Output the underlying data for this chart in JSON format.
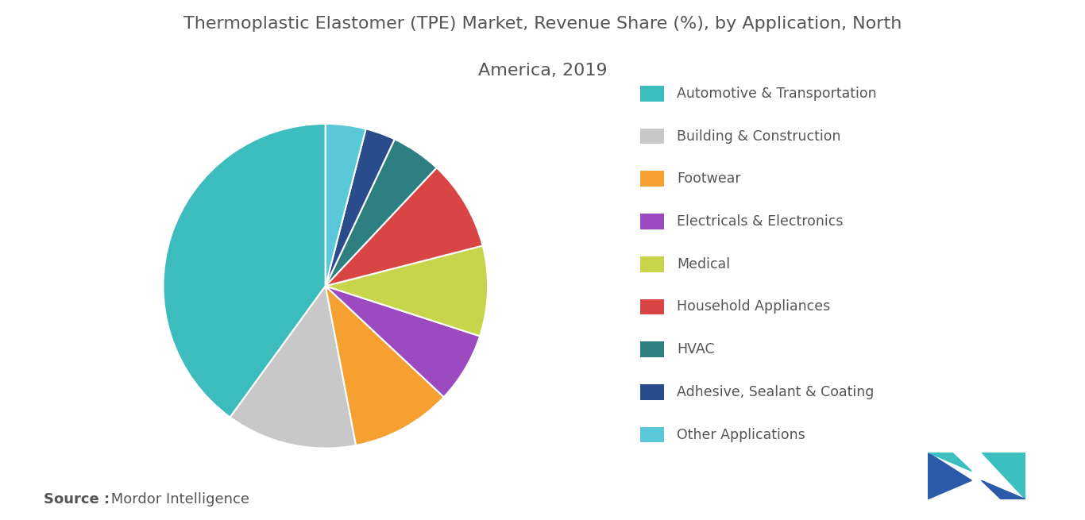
{
  "title_line1": "Thermoplastic Elastomer (TPE) Market, Revenue Share (%), by Application, North",
  "title_line2": "America, 2019",
  "segments": [
    {
      "label": "Automotive & Transportation",
      "value": 40,
      "color": "#3cbcbc"
    },
    {
      "label": "Building & Construction",
      "value": 13,
      "color": "#c8c8c8"
    },
    {
      "label": "Footwear",
      "value": 10,
      "color": "#f5a030"
    },
    {
      "label": "Electricals & Electronics",
      "value": 7,
      "color": "#9b4bbf"
    },
    {
      "label": "Medical",
      "value": 9,
      "color": "#c8d44a"
    },
    {
      "label": "Household Appliances",
      "value": 9,
      "color": "#d94545"
    },
    {
      "label": "HVAC",
      "value": 5,
      "color": "#2e8080"
    },
    {
      "label": "Adhesive, Sealant & Coating",
      "value": 3,
      "color": "#2b4c8c"
    },
    {
      "label": "Other Applications",
      "value": 4,
      "color": "#5bc8d9"
    }
  ],
  "source_bold": "Source :",
  "source_normal": " Mordor Intelligence",
  "background_color": "#ffffff",
  "title_color": "#555555",
  "legend_text_color": "#555555",
  "source_text_color": "#555555",
  "title_fontsize": 16,
  "legend_fontsize": 12.5,
  "source_fontsize": 13,
  "startangle": 90
}
